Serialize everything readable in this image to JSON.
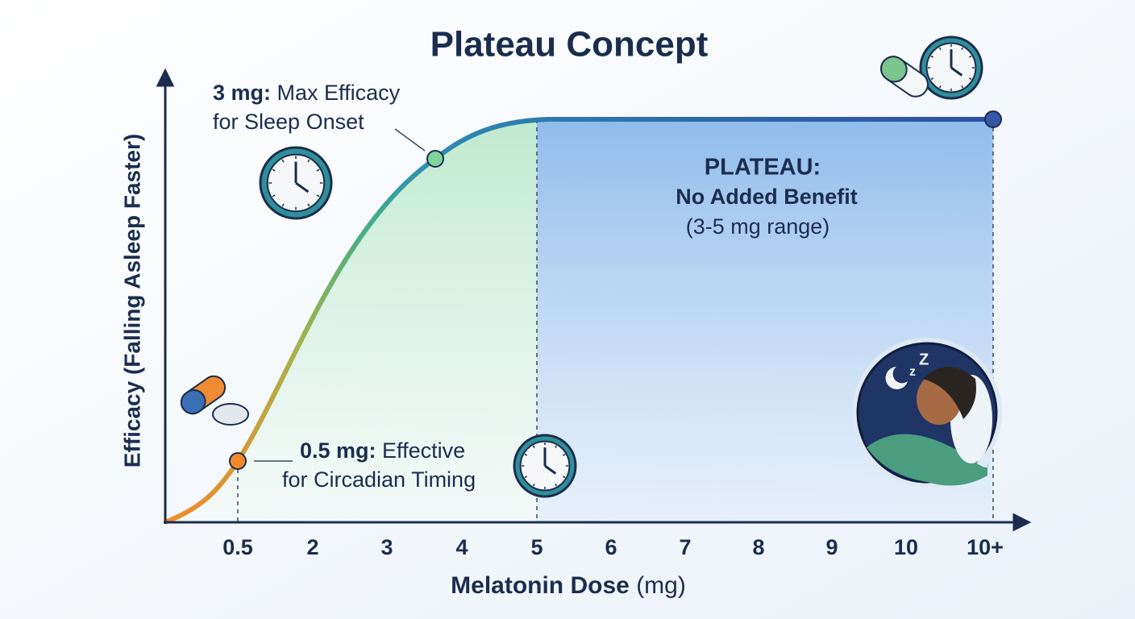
{
  "header": {
    "title": "Plateau Concept"
  },
  "axes": {
    "y_label": "Efficacy (Falling Asleep Faster)",
    "x_label_bold": "Melatonin Dose",
    "x_label_unit": "(mg)",
    "x_ticks": [
      "0.5",
      "2",
      "3",
      "4",
      "5",
      "6",
      "7",
      "8",
      "9",
      "10",
      "10+"
    ]
  },
  "annotations": {
    "max_efficacy": {
      "bold": "3 mg:",
      "text": "Max Efficacy",
      "line2": "for Sleep Onset"
    },
    "circadian": {
      "bold": "0.5 mg:",
      "text": "Effective",
      "line2": "for Circadian Timing"
    },
    "plateau": {
      "title": "PLATEAU:",
      "subtitle": "No Added Benefit",
      "range": "(3-5 mg range)"
    }
  }
}
